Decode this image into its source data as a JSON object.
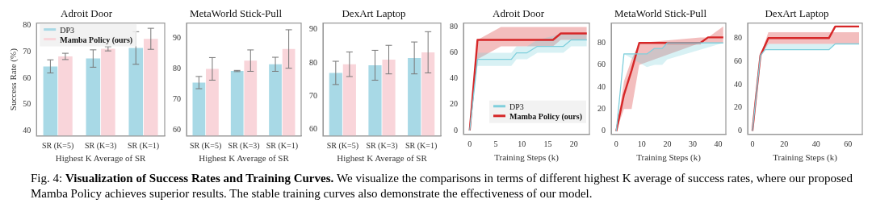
{
  "chart_data": [
    {
      "type": "bar",
      "title": "Adroit Door",
      "xlabel": "Highest K Average of SR",
      "ylabel": "Success Rate (%)",
      "categories": [
        "SR (K=5)",
        "SR (K=3)",
        "SR (K=1)"
      ],
      "ylim": [
        38,
        81
      ],
      "yticks": [
        40,
        50,
        60,
        70,
        80
      ],
      "grid": false,
      "legend": "top left",
      "series": [
        {
          "name": "DP3",
          "color": "#a8d9e6",
          "values": [
            64.5,
            67.5,
            71.5
          ],
          "errors": [
            2.5,
            3.3,
            6.2
          ]
        },
        {
          "name": "Mamba Policy (ours)",
          "color": "#f9d5da",
          "values": [
            68.3,
            71.2,
            75
          ],
          "errors": [
            1.2,
            0.8,
            4
          ]
        }
      ],
      "annotations": [
        "Fig. 4:",
        "Visualization of Success Rates and Training Curves.",
        "We visualize the comparisons in terms of different highest K average of success rates, where our proposed Mamba Policy achieves superior results. The stable training curves also demonstrate the effectiveness of our model."
      ]
    },
    {
      "type": "bar",
      "title": "MetaWorld Stick-Pull",
      "xlabel": "Highest K Average of SR",
      "categories": [
        "SR (K=5)",
        "SR (K=3)",
        "SR (K=1)"
      ],
      "ylim": [
        58,
        95
      ],
      "yticks": [
        60,
        70,
        80,
        90
      ],
      "grid": false,
      "series": [
        {
          "color": "#a8d9e6",
          "values": [
            75.5,
            79.3,
            81.5
          ],
          "errors": [
            2,
            0.2,
            2.3
          ]
        },
        {
          "color": "#f9d5da",
          "values": [
            80,
            82.7,
            86.5
          ],
          "errors": [
            3.7,
            3.5,
            6.3
          ]
        }
      ]
    },
    {
      "type": "bar",
      "title": "DexArt Laptop",
      "xlabel": "Highest K Average of SR",
      "categories": [
        "SR (K=5)",
        "SR (K=3)",
        "SR (K=1)"
      ],
      "ylim": [
        58,
        92
      ],
      "yticks": [
        60,
        70,
        80,
        90
      ],
      "grid": false,
      "series": [
        {
          "color": "#a8d9e6",
          "values": [
            77,
            79.3,
            81.5
          ],
          "errors": [
            3.5,
            4.5,
            4.8
          ]
        },
        {
          "color": "#f9d5da",
          "values": [
            79.6,
            81,
            83.2
          ],
          "errors": [
            3.7,
            4.3,
            6.2
          ]
        }
      ]
    },
    {
      "type": "line",
      "title": "Adroit Door",
      "xlabel": "Training Steps (k)",
      "xlim": [
        -1.2,
        23
      ],
      "xticks": [
        0,
        5,
        10,
        15,
        20
      ],
      "ylim": [
        -3,
        83
      ],
      "yticks": [
        0,
        20,
        40,
        60,
        80
      ],
      "grid": false,
      "legend": "bottom right",
      "marker": "none",
      "series": [
        {
          "name": "DP3",
          "color": "#7fcfdc",
          "x": [
            0,
            1.5,
            8,
            9,
            11,
            13,
            18,
            19.5,
            22.5
          ],
          "values": [
            0,
            55,
            55,
            60,
            60,
            65,
            65,
            70,
            70
          ],
          "lower": [
            0,
            50,
            50,
            55,
            55,
            60,
            60,
            65,
            65
          ],
          "upper": [
            0,
            60,
            60,
            65,
            65,
            70,
            75,
            75,
            75
          ]
        },
        {
          "name": "Mamba Policy (ours)",
          "color": "#d62728",
          "x": [
            0,
            1.5,
            6,
            16,
            17.5,
            22.5
          ],
          "values": [
            0,
            70,
            70,
            70,
            75,
            75
          ],
          "lower": [
            0,
            55,
            65,
            65,
            70,
            70
          ],
          "upper": [
            0,
            70,
            80,
            80,
            80,
            80
          ]
        }
      ]
    },
    {
      "type": "line",
      "title": "MetaWorld Stick-Pull",
      "xlabel": "Training Steps (k)",
      "xlim": [
        -2,
        43
      ],
      "xticks": [
        0,
        10,
        20,
        30,
        40
      ],
      "ylim": [
        -3,
        98
      ],
      "yticks": [
        0,
        20,
        40,
        60,
        80
      ],
      "grid": false,
      "marker": "none",
      "series": [
        {
          "color": "#7fcfdc",
          "x": [
            0,
            3,
            12,
            15,
            18,
            20,
            42
          ],
          "values": [
            0,
            70,
            70,
            75,
            75,
            80,
            80
          ],
          "lower": [
            0,
            70,
            58,
            60,
            60,
            65,
            80
          ],
          "upper": [
            0,
            70,
            70,
            75,
            75,
            80,
            80
          ]
        },
        {
          "color": "#d62728",
          "x": [
            0,
            3,
            6,
            9,
            33,
            36,
            42
          ],
          "values": [
            0,
            33,
            55,
            80,
            80,
            85,
            85
          ],
          "lower": [
            0,
            20,
            20,
            60,
            80,
            80,
            80
          ],
          "upper": [
            0,
            45,
            65,
            80,
            85,
            85,
            95
          ]
        }
      ]
    },
    {
      "type": "line",
      "title": "DexArt Laptop",
      "xlabel": "Training Steps (k)",
      "xlim": [
        -3,
        69
      ],
      "xticks": [
        0,
        20,
        40,
        60
      ],
      "ylim": [
        -3,
        93
      ],
      "yticks": [
        0,
        20,
        40,
        60,
        80
      ],
      "grid": false,
      "marker": "none",
      "series": [
        {
          "color": "#7fcfdc",
          "x": [
            0,
            5,
            8,
            48,
            52,
            67
          ],
          "values": [
            0,
            65,
            70,
            70,
            75,
            75
          ],
          "lower": [
            0,
            65,
            70,
            70,
            75,
            75
          ],
          "upper": [
            0,
            65,
            75,
            75,
            75,
            75
          ]
        },
        {
          "color": "#d62728",
          "x": [
            0,
            5,
            10,
            48,
            52,
            67
          ],
          "values": [
            0,
            65,
            80,
            80,
            90,
            90
          ],
          "lower": [
            0,
            65,
            75,
            75,
            75,
            75
          ],
          "upper": [
            0,
            65,
            85,
            85,
            85,
            85
          ]
        }
      ]
    }
  ]
}
